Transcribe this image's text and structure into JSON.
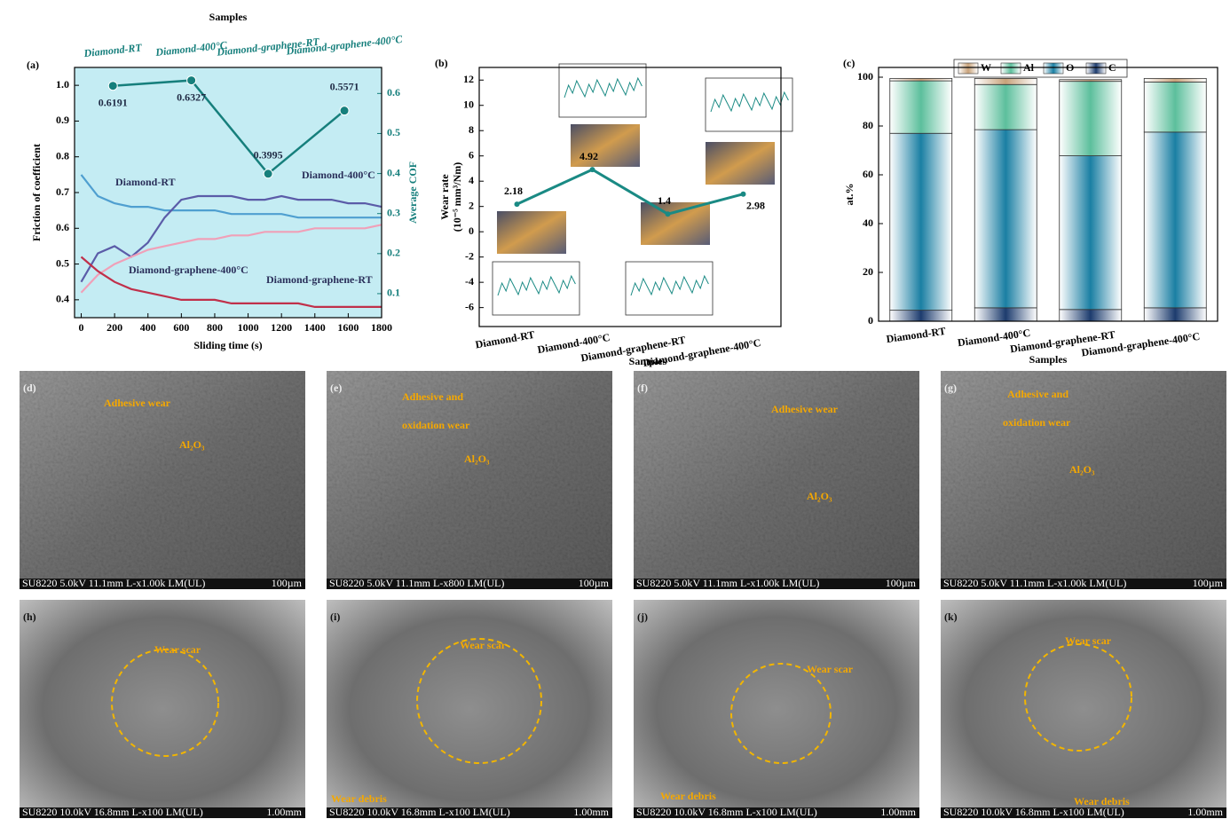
{
  "chart_data": [
    {
      "type": "line",
      "panel_label": "(a)",
      "top_axis_title": "Samples",
      "top_categories": [
        "Diamond-RT",
        "Diamond-400°C",
        "Diamond-graphene-RT",
        "Diamond-graphene-400°C"
      ],
      "xlabel": "Sliding time (s)",
      "ylabel": "Friction of coefficient",
      "y2label": "Average COF",
      "background": "#c4ecf3",
      "x": [
        0,
        100,
        200,
        300,
        400,
        500,
        600,
        700,
        800,
        900,
        1000,
        1100,
        1200,
        1300,
        1400,
        1500,
        1600,
        1700,
        1800
      ],
      "xlim": [
        -40,
        1800
      ],
      "xticks": [
        0,
        200,
        400,
        600,
        800,
        1000,
        1200,
        1400,
        1600,
        1800
      ],
      "ylim": [
        0.35,
        1.05
      ],
      "yticks": [
        0.4,
        0.5,
        0.6,
        0.7,
        0.8,
        0.9,
        {
          "value": 1,
          "label": "1.0"
        }
      ],
      "y2lim": [
        0.04,
        0.665
      ],
      "y2ticks": [
        0.1,
        0.2,
        0.3,
        0.4,
        0.5,
        0.6
      ],
      "series": [
        {
          "name": "Diamond-RT",
          "color": "#4f9fd0",
          "values": [
            0.75,
            0.69,
            0.67,
            0.66,
            0.66,
            0.65,
            0.65,
            0.65,
            0.65,
            0.64,
            0.64,
            0.64,
            0.64,
            0.63,
            0.63,
            0.63,
            0.63,
            0.63,
            0.63
          ]
        },
        {
          "name": "Diamond-400°C",
          "color": "#5b5ca8",
          "values": [
            0.45,
            0.53,
            0.55,
            0.52,
            0.56,
            0.63,
            0.68,
            0.69,
            0.69,
            0.69,
            0.68,
            0.68,
            0.69,
            0.68,
            0.68,
            0.68,
            0.67,
            0.67,
            0.66
          ]
        },
        {
          "name": "Diamond-graphene-400°C",
          "color": "#f0a0b8",
          "values": [
            0.42,
            0.47,
            0.5,
            0.52,
            0.54,
            0.55,
            0.56,
            0.57,
            0.57,
            0.58,
            0.58,
            0.59,
            0.59,
            0.59,
            0.6,
            0.6,
            0.6,
            0.6,
            0.61
          ]
        },
        {
          "name": "Diamond-graphene-RT",
          "color": "#c0304a",
          "values": [
            0.52,
            0.48,
            0.45,
            0.43,
            0.42,
            0.41,
            0.4,
            0.4,
            0.4,
            0.39,
            0.39,
            0.39,
            0.39,
            0.39,
            0.38,
            0.38,
            0.38,
            0.38,
            0.38
          ]
        }
      ],
      "average": {
        "axis": "y2",
        "color": "#167f7c",
        "x": [
          190,
          660,
          1120,
          1577
        ],
        "values": [
          0.6191,
          0.6327,
          0.3995,
          0.5571
        ]
      }
    },
    {
      "type": "line",
      "panel_label": "(b)",
      "xlabel": "Samples",
      "ylabel": [
        "Wear rate",
        "(10⁻⁵ mm³/Nm)"
      ],
      "categories": [
        "Diamond-RT",
        "Diamond-400°C",
        "Diamond-graphene-RT",
        "Diamond-graphene-400°C"
      ],
      "values": [
        2.18,
        4.92,
        1.4,
        2.98
      ],
      "color": "#1a8a84",
      "ylim": [
        -7.5,
        13
      ],
      "yticks": [
        -6,
        -4,
        -2,
        0,
        2,
        4,
        6,
        8,
        10,
        12
      ]
    },
    {
      "type": "stacked_bar",
      "panel_label": "(c)",
      "xlabel": "Samples",
      "ylabel": "at.%",
      "categories": [
        "Diamond-RT",
        "Diamond-400°C",
        "Diamond-graphene-RT",
        "Diamond-graphene-400°C"
      ],
      "ylim": [
        0,
        104
      ],
      "yticks": [
        0,
        20,
        40,
        60,
        80,
        100
      ],
      "series": [
        {
          "name": "C",
          "color": "#1d3c6e",
          "values": [
            4.5,
            5.5,
            4.8,
            5.5
          ]
        },
        {
          "name": "O",
          "color": "#1a7fa3",
          "values": [
            72.5,
            73,
            63,
            72
          ]
        },
        {
          "name": "Al",
          "color": "#5cbf9c",
          "values": [
            21.5,
            18.5,
            30.5,
            20.5
          ]
        },
        {
          "name": "W",
          "color": "#c8a27a",
          "values": [
            1,
            2.5,
            0.7,
            1.5
          ]
        }
      ]
    }
  ],
  "micrographs": [
    {
      "label": "(d)",
      "annotations": [
        "Adhesive wear",
        "Al₂O₃"
      ],
      "footer": "SU8220 5.0kV 11.1mm L-x1.00k LM(UL)",
      "scale": "100µm"
    },
    {
      "label": "(e)",
      "annotations": [
        "Adhesive and",
        "oxidation wear",
        "Al₂O₃"
      ],
      "footer": "SU8220 5.0kV 11.1mm L-x800 LM(UL)",
      "scale": "100µm"
    },
    {
      "label": "(f)",
      "annotations": [
        "Adhesive wear",
        "Al₂O₃"
      ],
      "footer": "SU8220 5.0kV 11.1mm L-x1.00k LM(UL)",
      "scale": "100µm"
    },
    {
      "label": "(g)",
      "annotations": [
        "Adhesive and",
        "oxidation wear",
        "Al₂O₃"
      ],
      "footer": "SU8220 5.0kV 11.1mm L-x1.00k LM(UL)",
      "scale": "100µm"
    },
    {
      "label": "(h)",
      "annotations": [
        "Wear scar"
      ],
      "footer": "SU8220 10.0kV 16.8mm L-x100 LM(UL)",
      "scale": "1.00mm"
    },
    {
      "label": "(i)",
      "annotations": [
        "Wear scar",
        "Wear debris"
      ],
      "footer": "SU8220 10.0kV 16.8mm L-x100 LM(UL)",
      "scale": "1.00mm"
    },
    {
      "label": "(j)",
      "annotations": [
        "Wear scar",
        "Wear debris"
      ],
      "footer": "SU8220 10.0kV 16.8mm L-x100 LM(UL)",
      "scale": "1.00mm"
    },
    {
      "label": "(k)",
      "annotations": [
        "Wear scar",
        "Wear debris"
      ],
      "footer": "SU8220 10.0kV 16.8mm L-x100 LM(UL)",
      "scale": "1.00mm"
    }
  ]
}
